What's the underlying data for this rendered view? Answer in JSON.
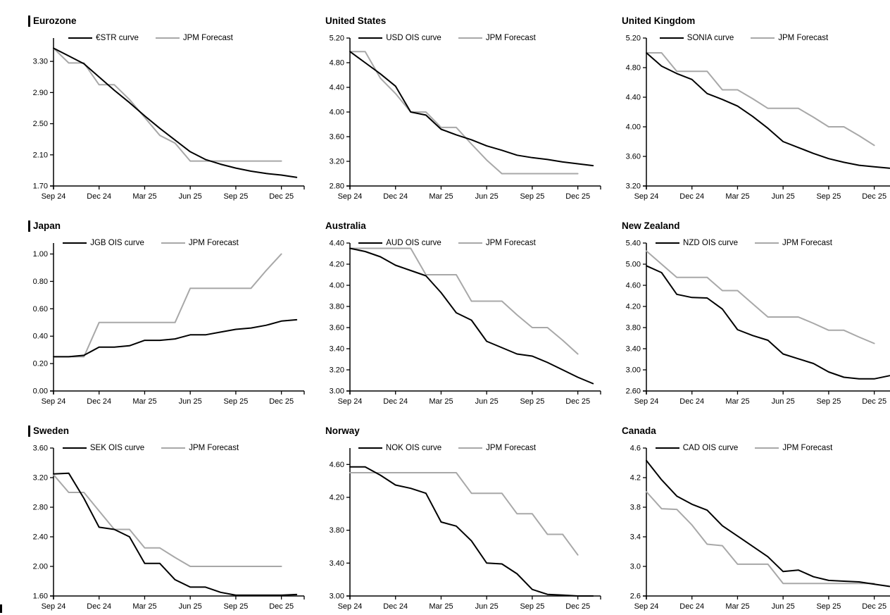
{
  "colors": {
    "ois_line": "#000000",
    "forecast_line": "#a8a8a8"
  },
  "x_axis": {
    "tick_labels": [
      "Sep 24",
      "Dec 24",
      "Mar 25",
      "Jun 25",
      "Sep 25",
      "Dec 25"
    ],
    "tick_positions": [
      0,
      3,
      6,
      9,
      12,
      15
    ],
    "months_span": 16.5
  },
  "chart_data": [
    {
      "type": "line",
      "title": "Eurozone",
      "y_ticks": [
        "1.70",
        "2.10",
        "2.50",
        "2.90",
        "3.30"
      ],
      "y_min": 1.7,
      "y_max": 3.6,
      "series": [
        {
          "name": "€STR curve",
          "color": "#000000",
          "values": [
            3.47,
            3.37,
            3.27,
            3.1,
            2.93,
            2.77,
            2.6,
            2.44,
            2.29,
            2.14,
            2.04,
            1.98,
            1.93,
            1.89,
            1.86,
            1.84,
            1.81
          ]
        },
        {
          "name": "JPM Forecast",
          "color": "#a8a8a8",
          "values": [
            3.47,
            3.28,
            3.28,
            3.0,
            3.0,
            2.81,
            2.58,
            2.35,
            2.25,
            2.02,
            2.02,
            2.02,
            2.02,
            2.02,
            2.02,
            2.02
          ]
        }
      ]
    },
    {
      "type": "line",
      "title": "United States",
      "y_ticks": [
        "2.80",
        "3.20",
        "3.60",
        "4.00",
        "4.40",
        "4.80",
        "5.20"
      ],
      "y_min": 2.8,
      "y_max": 5.2,
      "series": [
        {
          "name": "USD OIS curve",
          "color": "#000000",
          "values": [
            4.98,
            4.8,
            4.62,
            4.42,
            4.0,
            3.95,
            3.72,
            3.63,
            3.55,
            3.45,
            3.38,
            3.3,
            3.26,
            3.23,
            3.19,
            3.16,
            3.13
          ]
        },
        {
          "name": "JPM Forecast",
          "color": "#a8a8a8",
          "values": [
            4.98,
            4.98,
            4.55,
            4.3,
            4.0,
            4.0,
            3.75,
            3.75,
            3.48,
            3.22,
            3.0,
            3.0,
            3.0,
            3.0,
            3.0,
            3.0
          ]
        }
      ]
    },
    {
      "type": "line",
      "title": "United Kingdom",
      "y_ticks": [
        "3.20",
        "3.60",
        "4.00",
        "4.40",
        "4.80",
        "5.20"
      ],
      "y_min": 3.2,
      "y_max": 5.2,
      "series": [
        {
          "name": "SONIA curve",
          "color": "#000000",
          "values": [
            5.0,
            4.82,
            4.72,
            4.64,
            4.45,
            4.37,
            4.28,
            4.14,
            3.98,
            3.8,
            3.72,
            3.64,
            3.57,
            3.52,
            3.48,
            3.46,
            3.44
          ]
        },
        {
          "name": "JPM Forecast",
          "color": "#a8a8a8",
          "values": [
            5.0,
            5.0,
            4.75,
            4.75,
            4.75,
            4.5,
            4.5,
            4.38,
            4.25,
            4.25,
            4.25,
            4.13,
            4.0,
            4.0,
            3.88,
            3.75
          ]
        }
      ]
    },
    {
      "type": "line",
      "title": "Japan",
      "y_ticks": [
        "0.00",
        "0.20",
        "0.40",
        "0.60",
        "0.80",
        "1.00"
      ],
      "y_min": 0.0,
      "y_max": 1.08,
      "series": [
        {
          "name": "JGB OIS curve",
          "color": "#000000",
          "values": [
            0.25,
            0.25,
            0.26,
            0.32,
            0.32,
            0.33,
            0.37,
            0.37,
            0.38,
            0.41,
            0.41,
            0.43,
            0.45,
            0.46,
            0.48,
            0.51,
            0.52
          ]
        },
        {
          "name": "JPM Forecast",
          "color": "#a8a8a8",
          "values": [
            0.25,
            0.25,
            0.25,
            0.5,
            0.5,
            0.5,
            0.5,
            0.5,
            0.5,
            0.75,
            0.75,
            0.75,
            0.75,
            0.75,
            0.88,
            1.0
          ]
        }
      ]
    },
    {
      "type": "line",
      "title": "Australia",
      "y_ticks": [
        "3.00",
        "3.20",
        "3.40",
        "3.60",
        "3.80",
        "4.00",
        "4.20",
        "4.40"
      ],
      "y_min": 3.0,
      "y_max": 4.4,
      "series": [
        {
          "name": "AUD OIS curve",
          "color": "#000000",
          "values": [
            4.35,
            4.32,
            4.27,
            4.19,
            4.14,
            4.09,
            3.93,
            3.74,
            3.67,
            3.47,
            3.41,
            3.35,
            3.33,
            3.27,
            3.2,
            3.13,
            3.07
          ]
        },
        {
          "name": "JPM Forecast",
          "color": "#a8a8a8",
          "values": [
            4.35,
            4.35,
            4.35,
            4.35,
            4.35,
            4.1,
            4.1,
            4.1,
            3.85,
            3.85,
            3.85,
            3.72,
            3.6,
            3.6,
            3.48,
            3.35
          ]
        }
      ]
    },
    {
      "type": "line",
      "title": "New Zealand",
      "y_ticks": [
        "2.60",
        "3.00",
        "3.40",
        "3.80",
        "4.20",
        "4.60",
        "5.00",
        "5.40"
      ],
      "y_min": 2.6,
      "y_max": 5.4,
      "series": [
        {
          "name": "NZD OIS curve",
          "color": "#000000",
          "values": [
            4.97,
            4.84,
            4.43,
            4.37,
            4.36,
            4.15,
            3.76,
            3.65,
            3.56,
            3.3,
            3.21,
            3.12,
            2.96,
            2.86,
            2.83,
            2.83,
            2.89
          ]
        },
        {
          "name": "JPM Forecast",
          "color": "#a8a8a8",
          "values": [
            5.25,
            5.0,
            4.75,
            4.75,
            4.75,
            4.5,
            4.5,
            4.25,
            4.0,
            4.0,
            4.0,
            3.88,
            3.75,
            3.75,
            3.62,
            3.5
          ]
        }
      ]
    },
    {
      "type": "line",
      "title": "Sweden",
      "y_ticks": [
        "1.60",
        "2.00",
        "2.40",
        "2.80",
        "3.20",
        "3.60"
      ],
      "y_min": 1.6,
      "y_max": 3.6,
      "series": [
        {
          "name": "SEK OIS curve",
          "color": "#000000",
          "values": [
            3.25,
            3.26,
            2.92,
            2.53,
            2.5,
            2.4,
            2.04,
            2.04,
            1.82,
            1.72,
            1.72,
            1.65,
            1.61,
            1.61,
            1.61,
            1.61,
            1.62
          ]
        },
        {
          "name": "JPM Forecast",
          "color": "#a8a8a8",
          "values": [
            3.24,
            3.0,
            3.0,
            2.75,
            2.5,
            2.5,
            2.25,
            2.25,
            2.12,
            2.0,
            2.0,
            2.0,
            2.0,
            2.0,
            2.0,
            2.0
          ]
        }
      ]
    },
    {
      "type": "line",
      "title": "Norway",
      "y_ticks": [
        "3.00",
        "3.40",
        "3.80",
        "4.20",
        "4.60"
      ],
      "y_min": 3.0,
      "y_max": 4.8,
      "series": [
        {
          "name": "NOK OIS curve",
          "color": "#000000",
          "values": [
            4.57,
            4.57,
            4.47,
            4.35,
            4.31,
            4.25,
            3.9,
            3.85,
            3.67,
            3.4,
            3.39,
            3.27,
            3.08,
            3.02,
            3.01,
            3.0,
            3.0
          ]
        },
        {
          "name": "JPM Forecast",
          "color": "#a8a8a8",
          "values": [
            4.5,
            4.5,
            4.5,
            4.5,
            4.5,
            4.5,
            4.5,
            4.5,
            4.25,
            4.25,
            4.25,
            4.0,
            4.0,
            3.75,
            3.75,
            3.5
          ]
        }
      ]
    },
    {
      "type": "line",
      "title": "Canada",
      "y_ticks": [
        "2.6",
        "3.0",
        "3.4",
        "3.8",
        "4.2",
        "4.6"
      ],
      "y_min": 2.6,
      "y_max": 4.6,
      "series": [
        {
          "name": "CAD OIS curve",
          "color": "#000000",
          "values": [
            4.43,
            4.17,
            3.95,
            3.84,
            3.76,
            3.55,
            3.41,
            3.27,
            3.13,
            2.93,
            2.95,
            2.86,
            2.81,
            2.8,
            2.79,
            2.76,
            2.73
          ]
        },
        {
          "name": "JPM Forecast",
          "color": "#a8a8a8",
          "values": [
            4.01,
            3.78,
            3.77,
            3.56,
            3.3,
            3.28,
            3.03,
            3.03,
            3.03,
            2.77,
            2.77,
            2.77,
            2.77,
            2.77,
            2.77,
            2.77
          ]
        }
      ]
    }
  ]
}
